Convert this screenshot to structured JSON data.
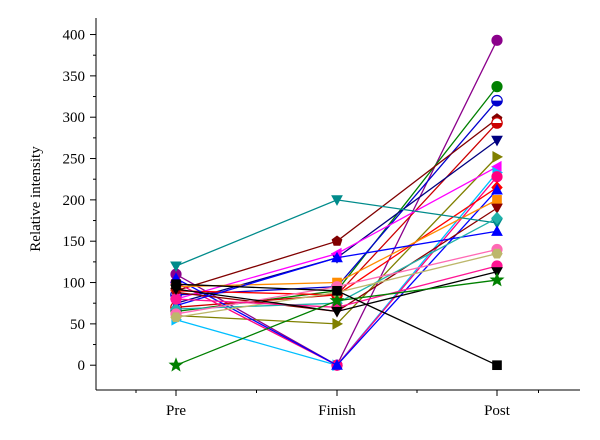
{
  "chart_data": {
    "type": "line",
    "title": "",
    "xlabel": "",
    "ylabel": "Relative intensity",
    "categories": [
      "Pre",
      "Finish",
      "Post"
    ],
    "ylim": [
      -30,
      420
    ],
    "yticks": [
      0,
      50,
      100,
      150,
      200,
      250,
      300,
      350,
      400
    ],
    "grid": false,
    "legend": "none",
    "series": [
      {
        "values": [
          110,
          0,
          393
        ],
        "color": "#8b008b",
        "marker": "circle"
      },
      {
        "values": [
          65,
          90,
          337
        ],
        "color": "#008000",
        "marker": "circle"
      },
      {
        "values": [
          85,
          95,
          320
        ],
        "color": "#0000cd",
        "marker": "half-circle"
      },
      {
        "values": [
          90,
          150,
          298
        ],
        "color": "#800000",
        "marker": "pentagon"
      },
      {
        "values": [
          70,
          85,
          293
        ],
        "color": "#cc0000",
        "marker": "half-circle"
      },
      {
        "values": [
          75,
          130,
          272
        ],
        "color": "#000080",
        "marker": "triangle-down"
      },
      {
        "values": [
          60,
          50,
          252
        ],
        "color": "#808000",
        "marker": "triangle-right"
      },
      {
        "values": [
          80,
          135,
          240
        ],
        "color": "#ff00ff",
        "marker": "triangle-left"
      },
      {
        "values": [
          55,
          0,
          233
        ],
        "color": "#00bfff",
        "marker": "triangle-right"
      },
      {
        "values": [
          100,
          0,
          228
        ],
        "color": "#ff0080",
        "marker": "circle"
      },
      {
        "values": [
          90,
          85,
          215
        ],
        "color": "#ff0000",
        "marker": "diamond"
      },
      {
        "values": [
          105,
          0,
          212
        ],
        "color": "#0000ff",
        "marker": "triangle-up"
      },
      {
        "values": [
          95,
          100,
          200
        ],
        "color": "#ff8c00",
        "marker": "square"
      },
      {
        "values": [
          88,
          65,
          190
        ],
        "color": "#8b0000",
        "marker": "triangle-down"
      },
      {
        "values": [
          120,
          200,
          172
        ],
        "color": "#008b8b",
        "marker": "triangle-down"
      },
      {
        "values": [
          72,
          130,
          162
        ],
        "color": "#0000ff",
        "marker": "triangle-up"
      },
      {
        "values": [
          68,
          75,
          178
        ],
        "color": "#20b2aa",
        "marker": "diamond"
      },
      {
        "values": [
          62,
          95,
          140
        ],
        "color": "#ff69b4",
        "marker": "circle"
      },
      {
        "values": [
          58,
          88,
          135
        ],
        "color": "#bdb76b",
        "marker": "hexagon"
      },
      {
        "values": [
          80,
          70,
          120
        ],
        "color": "#ff1493",
        "marker": "circle"
      },
      {
        "values": [
          92,
          65,
          113
        ],
        "color": "#000000",
        "marker": "triangle-down"
      },
      {
        "values": [
          0,
          78,
          103
        ],
        "color": "#008000",
        "marker": "star"
      },
      {
        "values": [
          98,
          90,
          0
        ],
        "color": "#000000",
        "marker": "square"
      }
    ]
  }
}
